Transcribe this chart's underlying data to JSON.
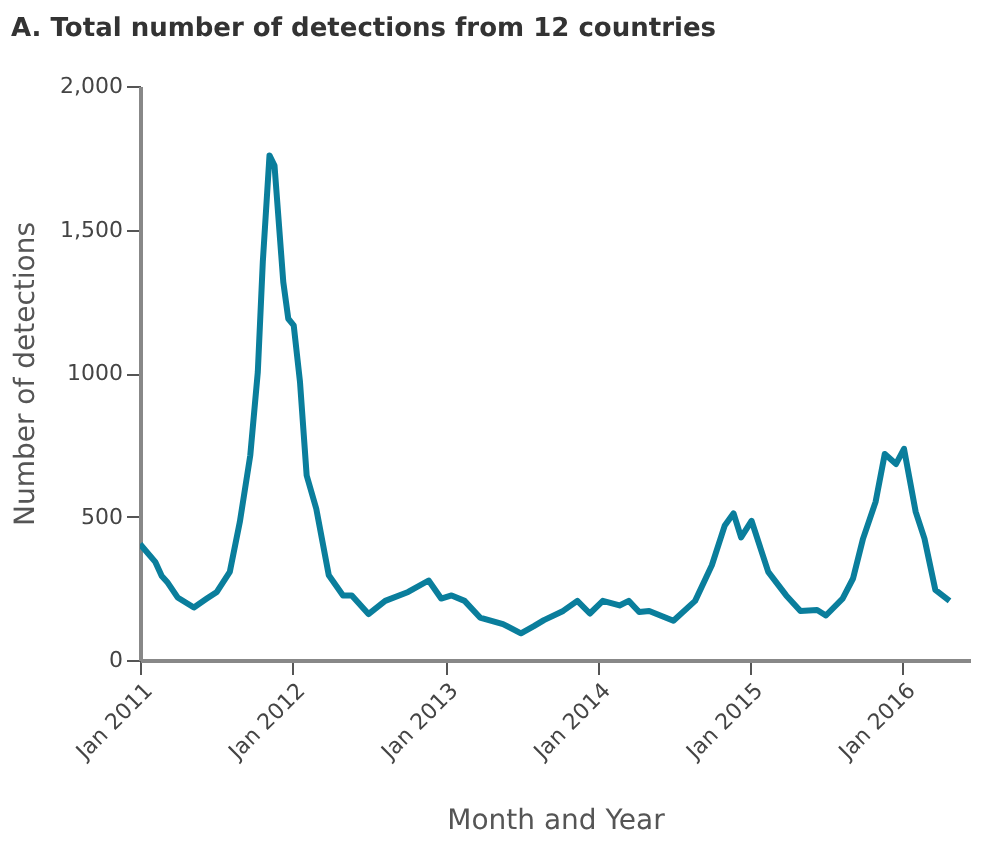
{
  "chart_data": {
    "type": "line",
    "title": "A. Total number of detections from 12 countries",
    "xlabel": "Month and Year",
    "ylabel": "Number of detections",
    "x": [
      "2011-01-01",
      "2011-02-07",
      "2011-02-22",
      "2011-03-07",
      "2011-04-01",
      "2011-05-10",
      "2011-06-10",
      "2011-07-04",
      "2011-08-04",
      "2011-08-28",
      "2011-09-22",
      "2011-10-10",
      "2011-10-22",
      "2011-11-07",
      "2011-11-19",
      "2011-12-10",
      "2011-12-22",
      "2012-01-04",
      "2012-01-19",
      "2012-02-04",
      "2012-02-27",
      "2012-03-28",
      "2012-05-01",
      "2012-05-22",
      "2012-07-01",
      "2012-08-10",
      "2012-10-04",
      "2012-11-22",
      "2012-12-22",
      "2013-01-16",
      "2013-02-16",
      "2013-03-25",
      "2013-05-19",
      "2013-07-01",
      "2013-08-01",
      "2013-08-25",
      "2013-10-10",
      "2013-11-13",
      "2013-12-13",
      "2014-01-13",
      "2014-02-22",
      "2014-03-16",
      "2014-04-10",
      "2014-05-04",
      "2014-07-01",
      "2014-08-22",
      "2014-10-01",
      "2014-11-01",
      "2014-11-22",
      "2014-12-10",
      "2015-01-04",
      "2015-02-13",
      "2015-03-28",
      "2015-05-01",
      "2015-06-10",
      "2015-07-01",
      "2015-08-10",
      "2015-09-04",
      "2015-09-28",
      "2015-10-28",
      "2015-11-19",
      "2015-12-16",
      "2016-01-04",
      "2016-02-01",
      "2016-02-22",
      "2016-03-19",
      "2016-04-22"
    ],
    "series": [
      {
        "color": "#0a7e9c",
        "values": [
          404,
          341,
          293,
          272,
          218,
          183,
          214,
          237,
          307,
          481,
          713,
          1003,
          1387,
          1758,
          1723,
          1317,
          1189,
          1166,
          969,
          643,
          527,
          295,
          225,
          225,
          160,
          206,
          237,
          277,
          214,
          225,
          206,
          148,
          125,
          93,
          118,
          139,
          171,
          206,
          162,
          206,
          190,
          206,
          167,
          171,
          137,
          206,
          330,
          469,
          511,
          427,
          485,
          307,
          225,
          171,
          174,
          155,
          214,
          284,
          423,
          551,
          718,
          683,
          736,
          516,
          423,
          244,
          206
        ]
      }
    ],
    "xlim": [
      "2011-01-01",
      "2016-06-10"
    ],
    "xticks": [
      {
        "value": "2011-01-01",
        "label": "Jan 2011"
      },
      {
        "value": "2012-01-01",
        "label": "Jan 2012"
      },
      {
        "value": "2013-01-01",
        "label": "Jan 2013"
      },
      {
        "value": "2014-01-01",
        "label": "Jan 2014"
      },
      {
        "value": "2015-01-01",
        "label": "Jan 2015"
      },
      {
        "value": "2016-01-01",
        "label": "Jan 2016"
      }
    ],
    "ylim": [
      0,
      2000
    ],
    "yticks": [
      0,
      500,
      {
        "value": 1000,
        "label": "1000"
      },
      {
        "value": 1500,
        "label": "1,500"
      },
      {
        "value": 2000,
        "label": "2,000"
      }
    ],
    "grid": false,
    "marker": "none",
    "line_style": "solid"
  }
}
